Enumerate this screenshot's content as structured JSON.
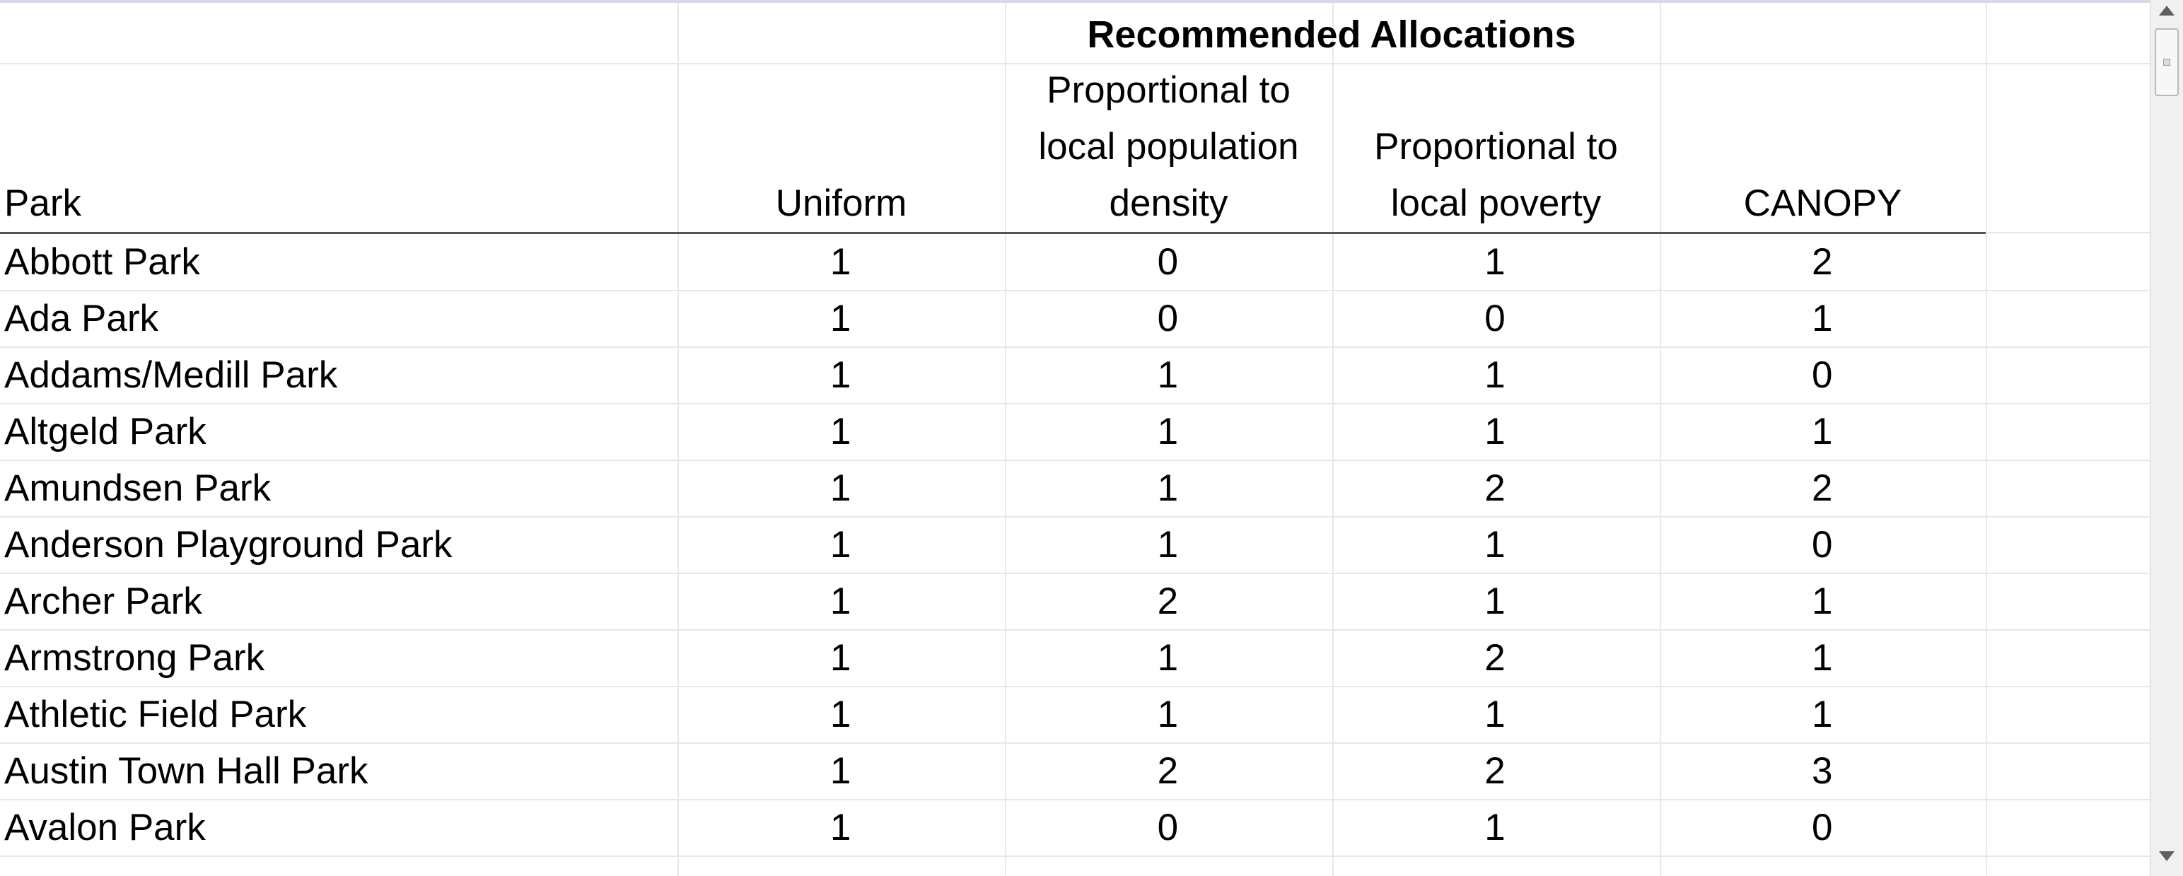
{
  "table": {
    "group_title": "Recommended Allocations",
    "headers": {
      "park": "Park",
      "uniform": "Uniform",
      "density": "Proportional to\nlocal population\ndensity",
      "poverty": "Proportional to\nlocal poverty",
      "canopy": "CANOPY"
    },
    "rows": [
      {
        "park": "Abbott Park",
        "uniform": "1",
        "density": "0",
        "poverty": "1",
        "canopy": "2"
      },
      {
        "park": "Ada Park",
        "uniform": "1",
        "density": "0",
        "poverty": "0",
        "canopy": "1"
      },
      {
        "park": "Addams/Medill Park",
        "uniform": "1",
        "density": "1",
        "poverty": "1",
        "canopy": "0"
      },
      {
        "park": "Altgeld Park",
        "uniform": "1",
        "density": "1",
        "poverty": "1",
        "canopy": "1"
      },
      {
        "park": "Amundsen Park",
        "uniform": "1",
        "density": "1",
        "poverty": "2",
        "canopy": "2"
      },
      {
        "park": "Anderson Playground Park",
        "uniform": "1",
        "density": "1",
        "poverty": "1",
        "canopy": "0"
      },
      {
        "park": "Archer Park",
        "uniform": "1",
        "density": "2",
        "poverty": "1",
        "canopy": "1"
      },
      {
        "park": "Armstrong Park",
        "uniform": "1",
        "density": "1",
        "poverty": "2",
        "canopy": "1"
      },
      {
        "park": "Athletic Field Park",
        "uniform": "1",
        "density": "1",
        "poverty": "1",
        "canopy": "1"
      },
      {
        "park": "Austin Town Hall Park",
        "uniform": "1",
        "density": "2",
        "poverty": "2",
        "canopy": "3"
      },
      {
        "park": "Avalon Park",
        "uniform": "1",
        "density": "0",
        "poverty": "1",
        "canopy": "0"
      }
    ]
  },
  "scrollbar": {
    "up_icon": "triangle-up",
    "down_icon": "triangle-down"
  }
}
